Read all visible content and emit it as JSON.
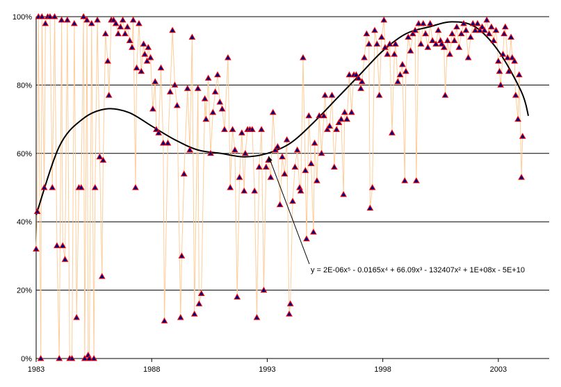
{
  "chart_data": {
    "type": "scatter",
    "title": "",
    "xlabel": "",
    "ylabel": "",
    "xlim": [
      1983,
      2005.2
    ],
    "ylim": [
      0,
      100
    ],
    "grid": "horizontal",
    "x_ticks": [
      "1983",
      "1988",
      "1993",
      "1998",
      "2003"
    ],
    "x_tick_values": [
      1983,
      1988,
      1993,
      1998,
      2003
    ],
    "y_ticks": [
      "0%",
      "20%",
      "40%",
      "60%",
      "80%",
      "100%"
    ],
    "y_tick_values": [
      0,
      20,
      40,
      60,
      80,
      100
    ],
    "colors": {
      "line": "#FFCC99",
      "marker_fill": "#000080",
      "marker_edge": "#FF0000",
      "trend": "#000000",
      "grid": "#000000"
    },
    "series": [
      {
        "marker": "triangle",
        "points": [
          [
            1983.0,
            32
          ],
          [
            1983.05,
            43
          ],
          [
            1983.1,
            100
          ],
          [
            1983.2,
            0
          ],
          [
            1983.25,
            100
          ],
          [
            1983.35,
            50
          ],
          [
            1983.4,
            98
          ],
          [
            1983.5,
            100
          ],
          [
            1983.6,
            100
          ],
          [
            1983.7,
            50
          ],
          [
            1983.8,
            100
          ],
          [
            1983.9,
            33
          ],
          [
            1984.0,
            0
          ],
          [
            1984.1,
            99
          ],
          [
            1984.15,
            33
          ],
          [
            1984.25,
            29
          ],
          [
            1984.35,
            99
          ],
          [
            1984.45,
            0
          ],
          [
            1984.55,
            0
          ],
          [
            1984.65,
            98
          ],
          [
            1984.75,
            12
          ],
          [
            1984.85,
            50
          ],
          [
            1984.95,
            50
          ],
          [
            1985.05,
            100
          ],
          [
            1985.1,
            0
          ],
          [
            1985.2,
            99
          ],
          [
            1985.25,
            1
          ],
          [
            1985.3,
            0
          ],
          [
            1985.4,
            98
          ],
          [
            1985.5,
            0
          ],
          [
            1985.55,
            50
          ],
          [
            1985.65,
            99
          ],
          [
            1985.75,
            59
          ],
          [
            1985.85,
            24
          ],
          [
            1985.9,
            58
          ],
          [
            1986.0,
            95
          ],
          [
            1986.1,
            87
          ],
          [
            1986.15,
            77
          ],
          [
            1986.25,
            99
          ],
          [
            1986.35,
            99
          ],
          [
            1986.45,
            98
          ],
          [
            1986.55,
            95
          ],
          [
            1986.65,
            97
          ],
          [
            1986.75,
            99
          ],
          [
            1986.85,
            95
          ],
          [
            1986.95,
            97
          ],
          [
            1987.05,
            93
          ],
          [
            1987.15,
            91
          ],
          [
            1987.2,
            99
          ],
          [
            1987.3,
            50
          ],
          [
            1987.35,
            85
          ],
          [
            1987.45,
            98
          ],
          [
            1987.55,
            84
          ],
          [
            1987.65,
            92
          ],
          [
            1987.7,
            89
          ],
          [
            1987.8,
            87
          ],
          [
            1987.85,
            91
          ],
          [
            1987.95,
            88
          ],
          [
            1988.05,
            73
          ],
          [
            1988.15,
            81
          ],
          [
            1988.2,
            67
          ],
          [
            1988.3,
            66
          ],
          [
            1988.4,
            85
          ],
          [
            1988.5,
            63
          ],
          [
            1988.55,
            11
          ],
          [
            1988.7,
            63
          ],
          [
            1988.8,
            78
          ],
          [
            1988.9,
            96
          ],
          [
            1989.0,
            80
          ],
          [
            1989.1,
            74
          ],
          [
            1989.25,
            12
          ],
          [
            1989.3,
            30
          ],
          [
            1989.4,
            54
          ],
          [
            1989.55,
            79
          ],
          [
            1989.65,
            61
          ],
          [
            1989.75,
            94
          ],
          [
            1989.85,
            13
          ],
          [
            1990.0,
            79
          ],
          [
            1990.05,
            16
          ],
          [
            1990.15,
            19
          ],
          [
            1990.3,
            76
          ],
          [
            1990.35,
            70
          ],
          [
            1990.45,
            82
          ],
          [
            1990.55,
            60
          ],
          [
            1990.65,
            72
          ],
          [
            1990.75,
            78
          ],
          [
            1990.85,
            83
          ],
          [
            1990.95,
            75
          ],
          [
            1991.05,
            73
          ],
          [
            1991.15,
            67
          ],
          [
            1991.3,
            88
          ],
          [
            1991.4,
            50
          ],
          [
            1991.5,
            67
          ],
          [
            1991.6,
            61
          ],
          [
            1991.7,
            18
          ],
          [
            1991.8,
            53
          ],
          [
            1991.9,
            66
          ],
          [
            1992.0,
            49
          ],
          [
            1992.05,
            60
          ],
          [
            1992.15,
            67
          ],
          [
            1992.25,
            67
          ],
          [
            1992.35,
            67
          ],
          [
            1992.45,
            49
          ],
          [
            1992.55,
            12
          ],
          [
            1992.65,
            56
          ],
          [
            1992.75,
            67
          ],
          [
            1992.85,
            20
          ],
          [
            1992.95,
            56
          ],
          [
            1993.05,
            58
          ],
          [
            1993.15,
            53
          ],
          [
            1993.25,
            72
          ],
          [
            1993.35,
            61
          ],
          [
            1993.45,
            62
          ],
          [
            1993.55,
            45
          ],
          [
            1993.65,
            59
          ],
          [
            1993.75,
            54
          ],
          [
            1993.85,
            64
          ],
          [
            1993.95,
            13
          ],
          [
            1994.0,
            16
          ],
          [
            1994.1,
            46
          ],
          [
            1994.2,
            56
          ],
          [
            1994.3,
            61
          ],
          [
            1994.4,
            50
          ],
          [
            1994.45,
            49
          ],
          [
            1994.55,
            88
          ],
          [
            1994.65,
            55
          ],
          [
            1994.7,
            35
          ],
          [
            1994.8,
            71
          ],
          [
            1994.9,
            57
          ],
          [
            1995.0,
            37
          ],
          [
            1995.05,
            63
          ],
          [
            1995.15,
            52
          ],
          [
            1995.25,
            71
          ],
          [
            1995.35,
            60
          ],
          [
            1995.45,
            71
          ],
          [
            1995.5,
            77
          ],
          [
            1995.6,
            67
          ],
          [
            1995.7,
            68
          ],
          [
            1995.8,
            77
          ],
          [
            1995.9,
            56
          ],
          [
            1996.0,
            67
          ],
          [
            1996.1,
            69
          ],
          [
            1996.2,
            70
          ],
          [
            1996.3,
            48
          ],
          [
            1996.35,
            72
          ],
          [
            1996.45,
            70
          ],
          [
            1996.55,
            83
          ],
          [
            1996.65,
            72
          ],
          [
            1996.75,
            83
          ],
          [
            1996.85,
            83
          ],
          [
            1996.95,
            82
          ],
          [
            1997.05,
            79
          ],
          [
            1997.1,
            81
          ],
          [
            1997.2,
            88
          ],
          [
            1997.3,
            95
          ],
          [
            1997.4,
            92
          ],
          [
            1997.45,
            44
          ],
          [
            1997.55,
            50
          ],
          [
            1997.65,
            96
          ],
          [
            1997.75,
            92
          ],
          [
            1997.85,
            77
          ],
          [
            1997.95,
            94
          ],
          [
            1998.05,
            99
          ],
          [
            1998.1,
            91
          ],
          [
            1998.2,
            89
          ],
          [
            1998.3,
            92
          ],
          [
            1998.4,
            66
          ],
          [
            1998.5,
            89
          ],
          [
            1998.55,
            92
          ],
          [
            1998.65,
            81
          ],
          [
            1998.75,
            83
          ],
          [
            1998.85,
            86
          ],
          [
            1998.95,
            52
          ],
          [
            1999.0,
            84
          ],
          [
            1999.1,
            94
          ],
          [
            1999.2,
            90
          ],
          [
            1999.3,
            95
          ],
          [
            1999.4,
            96
          ],
          [
            1999.45,
            52
          ],
          [
            1999.55,
            98
          ],
          [
            1999.65,
            92
          ],
          [
            1999.75,
            98
          ],
          [
            1999.85,
            95
          ],
          [
            1999.95,
            91
          ],
          [
            2000.05,
            98
          ],
          [
            2000.15,
            93
          ],
          [
            2000.3,
            92
          ],
          [
            2000.4,
            96
          ],
          [
            2000.5,
            93
          ],
          [
            2000.55,
            92
          ],
          [
            2000.65,
            91
          ],
          [
            2000.7,
            77
          ],
          [
            2000.8,
            93
          ],
          [
            2000.9,
            89
          ],
          [
            2001.0,
            95
          ],
          [
            2001.1,
            93
          ],
          [
            2001.2,
            97
          ],
          [
            2001.3,
            91
          ],
          [
            2001.4,
            95
          ],
          [
            2001.5,
            98
          ],
          [
            2001.6,
            96
          ],
          [
            2001.7,
            88
          ],
          [
            2001.8,
            94
          ],
          [
            2001.9,
            98
          ],
          [
            2002.0,
            96
          ],
          [
            2002.1,
            98
          ],
          [
            2002.2,
            96
          ],
          [
            2002.3,
            97
          ],
          [
            2002.4,
            96
          ],
          [
            2002.5,
            99
          ],
          [
            2002.6,
            95
          ],
          [
            2002.7,
            97
          ],
          [
            2002.8,
            93
          ],
          [
            2002.9,
            96
          ],
          [
            2003.0,
            87
          ],
          [
            2003.05,
            84
          ],
          [
            2003.1,
            80
          ],
          [
            2003.2,
            89
          ],
          [
            2003.25,
            95
          ],
          [
            2003.3,
            97
          ],
          [
            2003.4,
            88
          ],
          [
            2003.45,
            84
          ],
          [
            2003.55,
            94
          ],
          [
            2003.6,
            88
          ],
          [
            2003.7,
            87
          ],
          [
            2003.75,
            77
          ],
          [
            2003.85,
            70
          ],
          [
            2003.9,
            83
          ],
          [
            2004.0,
            53
          ],
          [
            2004.05,
            65
          ]
        ]
      }
    ],
    "trendline": {
      "type": "polynomial",
      "order": 5,
      "points": [
        [
          1983,
          42
        ],
        [
          1984,
          62
        ],
        [
          1985,
          70
        ],
        [
          1986,
          73
        ],
        [
          1987,
          72
        ],
        [
          1988,
          68
        ],
        [
          1989,
          64
        ],
        [
          1990,
          61
        ],
        [
          1991,
          60
        ],
        [
          1992,
          59
        ],
        [
          1993,
          60
        ],
        [
          1994,
          63
        ],
        [
          1995,
          69
        ],
        [
          1996,
          76
        ],
        [
          1997,
          83
        ],
        [
          1998,
          90
        ],
        [
          1999,
          95
        ],
        [
          2000,
          97
        ],
        [
          2001,
          98.5
        ],
        [
          2002,
          97
        ],
        [
          2003,
          90
        ],
        [
          2004,
          78
        ],
        [
          2004.3,
          71
        ]
      ]
    },
    "annotations": [
      {
        "text": "y = 2E-06x⁵ - 0.0165x⁴ + 66.09x³ - 132407x² + 1E+08x - 5E+10",
        "points_to": [
          1993,
          60
        ]
      }
    ]
  }
}
